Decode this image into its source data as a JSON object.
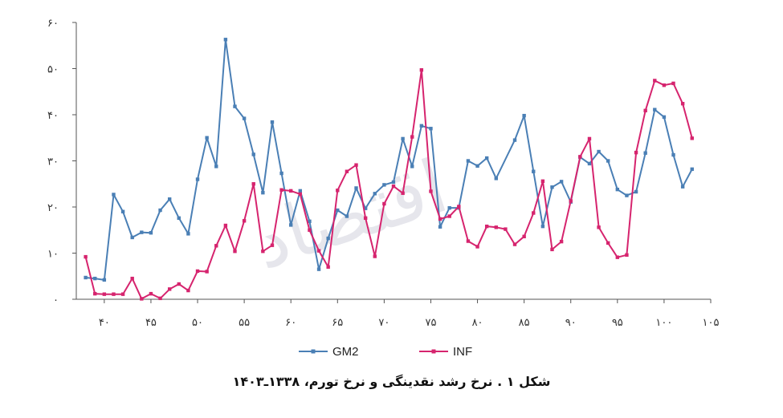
{
  "chart_data": {
    "type": "line",
    "title": "",
    "xlabel": "",
    "ylabel": "",
    "xlim": [
      37,
      105
    ],
    "ylim": [
      0,
      60
    ],
    "x_ticks": [
      40,
      45,
      50,
      55,
      60,
      65,
      70,
      75,
      80,
      85,
      90,
      95,
      100,
      105
    ],
    "x_tick_labels": [
      "۴۰",
      "۴۵",
      "۵۰",
      "۵۵",
      "۶۰",
      "۶۵",
      "۷۰",
      "۷۵",
      "۸۰",
      "۸۵",
      "۹۰",
      "۹۵",
      "۱۰۰",
      "۱۰۵"
    ],
    "y_ticks": [
      0,
      10,
      20,
      30,
      40,
      50,
      60
    ],
    "y_tick_labels": [
      "۰",
      "۱۰",
      "۲۰",
      "۳۰",
      "۴۰",
      "۵۰",
      "۶۰"
    ],
    "grid": false,
    "legend_position": "bottom",
    "series": [
      {
        "name": "GM2",
        "color": "#4a7fb5",
        "points": [
          [
            38,
            4.7
          ],
          [
            39,
            4.5
          ],
          [
            40,
            4.2
          ],
          [
            41,
            22.7
          ],
          [
            42,
            19
          ],
          [
            43,
            13.4
          ],
          [
            44,
            14.5
          ],
          [
            45,
            14.4
          ],
          [
            46,
            19.3
          ],
          [
            47,
            21.7
          ],
          [
            48,
            17.6
          ],
          [
            49,
            14.2
          ],
          [
            50,
            26
          ],
          [
            51,
            35
          ],
          [
            52,
            28.8
          ],
          [
            53,
            56.3
          ],
          [
            54,
            41.8
          ],
          [
            55,
            39.2
          ],
          [
            56,
            31.4
          ],
          [
            57,
            23.1
          ],
          [
            58,
            38.4
          ],
          [
            59,
            27.3
          ],
          [
            60,
            16.1
          ],
          [
            61,
            23.5
          ],
          [
            62,
            16.9
          ],
          [
            63,
            6.5
          ],
          [
            64,
            13.2
          ],
          [
            65,
            19.3
          ],
          [
            66,
            18
          ],
          [
            67,
            24.1
          ],
          [
            68,
            19.7
          ],
          [
            69,
            22.9
          ],
          [
            70,
            24.8
          ],
          [
            71,
            25.4
          ],
          [
            72,
            34.8
          ],
          [
            73,
            28.8
          ],
          [
            74,
            37.6
          ],
          [
            75,
            37
          ],
          [
            76,
            15.7
          ],
          [
            77,
            19.8
          ],
          [
            78,
            19.8
          ],
          [
            79,
            30
          ],
          [
            80,
            28.9
          ],
          [
            81,
            30.6
          ],
          [
            82,
            26.2
          ],
          [
            84,
            34.5
          ],
          [
            85,
            39.8
          ],
          [
            86,
            27.7
          ],
          [
            87,
            15.8
          ],
          [
            88,
            24.3
          ],
          [
            89,
            25.5
          ],
          [
            90,
            21.1
          ],
          [
            91,
            30.8
          ],
          [
            92,
            29.4
          ],
          [
            93,
            32
          ],
          [
            94,
            30
          ],
          [
            95,
            23.8
          ],
          [
            96,
            22.5
          ],
          [
            97,
            23.3
          ],
          [
            98,
            31.7
          ],
          [
            99,
            41.1
          ],
          [
            100,
            39.5
          ],
          [
            101,
            31.3
          ],
          [
            102,
            24.4
          ],
          [
            103,
            28.2
          ]
        ]
      },
      {
        "name": "INF",
        "color": "#d6246e",
        "points": [
          [
            38,
            9.2
          ],
          [
            39,
            1.2
          ],
          [
            40,
            1.1
          ],
          [
            41,
            1.1
          ],
          [
            42,
            1.1
          ],
          [
            43,
            4.5
          ],
          [
            44,
            0.1
          ],
          [
            45,
            1.2
          ],
          [
            46,
            0.2
          ],
          [
            47,
            2.2
          ],
          [
            48,
            3.3
          ],
          [
            49,
            1.9
          ],
          [
            50,
            6.1
          ],
          [
            51,
            6
          ],
          [
            52,
            11.6
          ],
          [
            53,
            16
          ],
          [
            54,
            10.4
          ],
          [
            55,
            17
          ],
          [
            56,
            25
          ],
          [
            57,
            10.4
          ],
          [
            58,
            11.7
          ],
          [
            59,
            23.7
          ],
          [
            60,
            23.5
          ],
          [
            61,
            22.8
          ],
          [
            62,
            15
          ],
          [
            63,
            10.5
          ],
          [
            64,
            7
          ],
          [
            65,
            23.6
          ],
          [
            66,
            27.7
          ],
          [
            67,
            29.1
          ],
          [
            68,
            17.6
          ],
          [
            69,
            9.3
          ],
          [
            70,
            20.7
          ],
          [
            71,
            24.5
          ],
          [
            72,
            23
          ],
          [
            73,
            35.2
          ],
          [
            74,
            49.7
          ],
          [
            75,
            23.4
          ],
          [
            76,
            17.4
          ],
          [
            77,
            18
          ],
          [
            78,
            20.1
          ],
          [
            79,
            12.6
          ],
          [
            80,
            11.4
          ],
          [
            81,
            15.8
          ],
          [
            82,
            15.6
          ],
          [
            83,
            15.2
          ],
          [
            84,
            11.9
          ],
          [
            85,
            13.6
          ],
          [
            86,
            18.7
          ],
          [
            87,
            25.6
          ],
          [
            88,
            10.8
          ],
          [
            89,
            12.5
          ],
          [
            90,
            21.3
          ],
          [
            91,
            30.9
          ],
          [
            92,
            34.8
          ],
          [
            93,
            15.6
          ],
          [
            94,
            12.2
          ],
          [
            95,
            9.1
          ],
          [
            96,
            9.6
          ],
          [
            97,
            31.8
          ],
          [
            98,
            40.9
          ],
          [
            99,
            47.4
          ],
          [
            100,
            46.4
          ],
          [
            101,
            46.8
          ],
          [
            102,
            42.4
          ],
          [
            103,
            34.9
          ]
        ]
      }
    ],
    "caption": "شکل ۱ . نرخ رشد نقدینگی و نرخ تورم، ۱۳۳۸ـ۱۴۰۳"
  }
}
